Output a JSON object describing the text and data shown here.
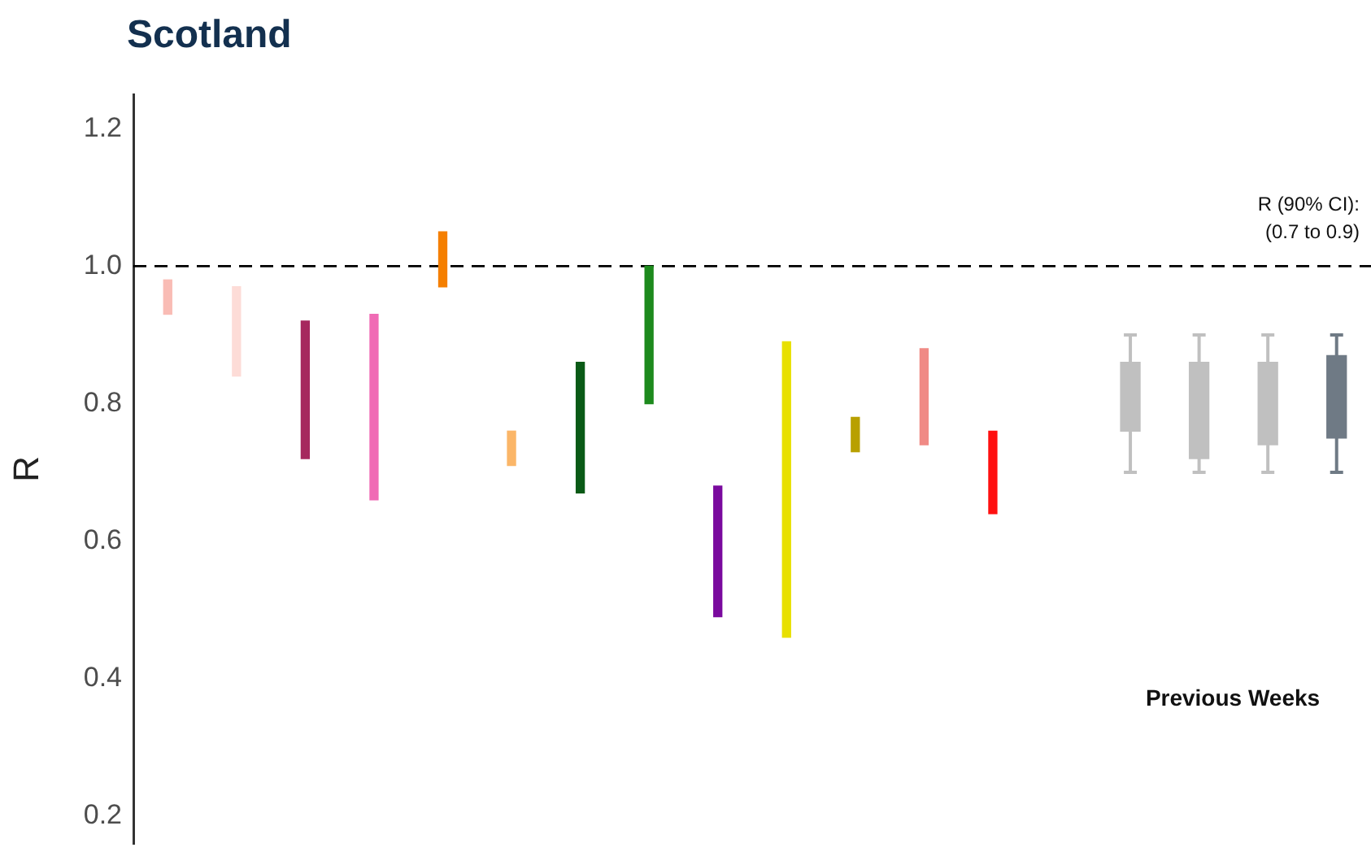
{
  "chart_data": {
    "type": "bar",
    "title": "Scotland",
    "ylabel": "R",
    "categories": [
      null,
      null,
      null,
      null,
      null,
      null,
      null,
      null,
      null,
      null,
      null,
      null,
      null,
      null,
      null,
      null,
      null,
      null
    ],
    "series": [
      {
        "colors": [
          "#f9bcb5",
          "#fddcd7",
          "#a6285e",
          "#f06bb5",
          "#f57f00",
          "#fbb668",
          "#0a5a16",
          "#1d8a1d",
          "#7a0a9e",
          "#e8e000",
          "#b8a000",
          "#f08a85",
          "#ff1010",
          null,
          "#c0c0c0",
          "#c0c0c0",
          "#c0c0c0",
          "#6f7a85"
        ],
        "base": [
          0.93,
          0.84,
          0.72,
          0.66,
          0.97,
          0.71,
          0.67,
          0.8,
          0.49,
          0.46,
          0.73,
          0.74,
          0.64,
          null,
          0.76,
          0.72,
          0.74,
          0.75
        ],
        "values": [
          0.05,
          0.13,
          0.2,
          0.27,
          0.08,
          0.05,
          0.19,
          0.2,
          0.19,
          0.43,
          0.05,
          0.14,
          0.12,
          null,
          0.1,
          0.14,
          0.12,
          0.12
        ],
        "errors": [
          null,
          null,
          null,
          null,
          null,
          null,
          null,
          null,
          null,
          null,
          null,
          null,
          null,
          null,
          [
            0.7,
            0.9
          ],
          [
            0.7,
            0.9
          ],
          [
            0.7,
            0.9
          ],
          [
            0.7,
            0.9
          ]
        ]
      }
    ],
    "ylim": [
      0.16,
      1.25
    ],
    "yticks": [
      0.2,
      0.4,
      0.6,
      0.8,
      {
        "value": 1.0,
        "label": "1.0"
      },
      1.2
    ],
    "ref_lines": [
      {
        "axis": "y",
        "value": 1.0,
        "color": "#000000",
        "line_style": "dashed"
      }
    ],
    "annotations": [
      "R (90% CI):",
      "(0.7 to 0.9)",
      "Previous Weeks"
    ]
  }
}
